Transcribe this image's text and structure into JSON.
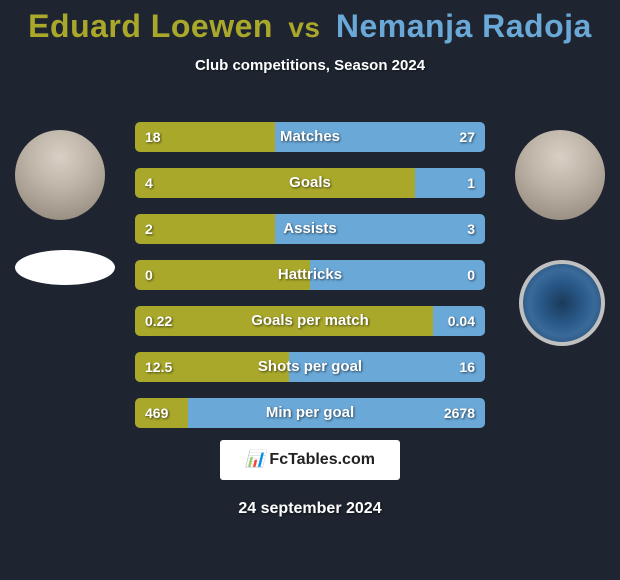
{
  "background_color": "#1e2530",
  "title": {
    "player1": "Eduard Loewen",
    "vs": "vs",
    "player2": "Nemanja Radoja",
    "color_p1": "#a9a82a",
    "color_vs": "#a9a82a",
    "color_p2": "#6aa8d8"
  },
  "subtitle": "Club competitions, Season 2024",
  "bar_colors": {
    "left": "#a9a82a",
    "right": "#6aa8d8",
    "track": "#3a4250"
  },
  "bar_radius": 5,
  "stats": [
    {
      "label": "Matches",
      "left_val": "18",
      "right_val": "27",
      "left_pct": 40,
      "right_pct": 60
    },
    {
      "label": "Goals",
      "left_val": "4",
      "right_val": "1",
      "left_pct": 80,
      "right_pct": 20
    },
    {
      "label": "Assists",
      "left_val": "2",
      "right_val": "3",
      "left_pct": 40,
      "right_pct": 60
    },
    {
      "label": "Hattricks",
      "left_val": "0",
      "right_val": "0",
      "left_pct": 50,
      "right_pct": 50
    },
    {
      "label": "Goals per match",
      "left_val": "0.22",
      "right_val": "0.04",
      "left_pct": 85,
      "right_pct": 15
    },
    {
      "label": "Shots per goal",
      "left_val": "12.5",
      "right_val": "16",
      "left_pct": 44,
      "right_pct": 56
    },
    {
      "label": "Min per goal",
      "left_val": "469",
      "right_val": "2678",
      "left_pct": 15,
      "right_pct": 85
    }
  ],
  "footer_brand": "FcTables.com",
  "date": "24 september 2024"
}
